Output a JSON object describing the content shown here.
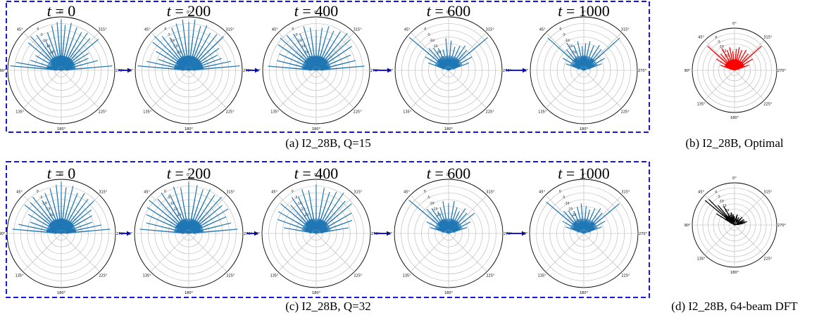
{
  "chart_data": {
    "type": "polar_beam_patterns",
    "angle_labels": [
      "0°",
      "45°",
      "90°",
      "135°",
      "180°",
      "225°",
      "270°",
      "315°"
    ],
    "radial_tick_labels": [
      "0",
      "-5",
      "-10",
      "-15",
      "-20",
      "-25"
    ],
    "colors": {
      "evolution": "#1f77b4",
      "optimal": "#ff0000",
      "dft": "#000000",
      "frame": "#1515e6",
      "arrow": "#1515e6"
    },
    "rows": [
      {
        "caption": "(a) I2_28B, Q=15",
        "panels": [
          {
            "t": "0",
            "lobes": [
              [
                85,
                0.95
              ],
              [
                80,
                0.85
              ],
              [
                72,
                0.6
              ],
              [
                60,
                0.55
              ],
              [
                50,
                0.8
              ],
              [
                42,
                0.85
              ],
              [
                35,
                0.8
              ],
              [
                28,
                0.6
              ],
              [
                20,
                0.75
              ],
              [
                12,
                0.85
              ],
              [
                5,
                0.9
              ],
              [
                0,
                0.95
              ],
              [
                -5,
                0.85
              ],
              [
                -12,
                0.9
              ],
              [
                -20,
                0.85
              ],
              [
                -28,
                0.8
              ],
              [
                -35,
                0.85
              ],
              [
                -42,
                0.8
              ],
              [
                -50,
                0.9
              ],
              [
                -58,
                0.6
              ],
              [
                -66,
                0.55
              ],
              [
                -75,
                0.7
              ],
              [
                -85,
                0.95
              ]
            ]
          },
          {
            "t": "200",
            "lobes": [
              [
                85,
                0.95
              ],
              [
                78,
                0.8
              ],
              [
                70,
                0.6
              ],
              [
                60,
                0.7
              ],
              [
                52,
                0.85
              ],
              [
                45,
                0.9
              ],
              [
                38,
                0.8
              ],
              [
                30,
                0.7
              ],
              [
                22,
                0.85
              ],
              [
                15,
                0.9
              ],
              [
                7,
                0.95
              ],
              [
                0,
                0.9
              ],
              [
                -7,
                0.95
              ],
              [
                -15,
                0.85
              ],
              [
                -22,
                0.9
              ],
              [
                -30,
                0.8
              ],
              [
                -38,
                0.85
              ],
              [
                -46,
                0.9
              ],
              [
                -54,
                0.7
              ],
              [
                -62,
                0.6
              ],
              [
                -70,
                0.65
              ],
              [
                -78,
                0.8
              ],
              [
                -85,
                0.95
              ]
            ]
          },
          {
            "t": "400",
            "lobes": [
              [
                85,
                0.9
              ],
              [
                76,
                0.75
              ],
              [
                66,
                0.75
              ],
              [
                56,
                0.85
              ],
              [
                48,
                0.9
              ],
              [
                40,
                0.85
              ],
              [
                32,
                0.8
              ],
              [
                24,
                0.75
              ],
              [
                16,
                0.85
              ],
              [
                8,
                0.8
              ],
              [
                0,
                0.75
              ],
              [
                -8,
                0.8
              ],
              [
                -16,
                0.85
              ],
              [
                -24,
                0.8
              ],
              [
                -32,
                0.85
              ],
              [
                -40,
                0.9
              ],
              [
                -48,
                0.85
              ],
              [
                -56,
                0.8
              ],
              [
                -66,
                0.7
              ],
              [
                -76,
                0.75
              ],
              [
                -85,
                0.9
              ]
            ]
          },
          {
            "t": "600",
            "lobes": [
              [
                70,
                0.4
              ],
              [
                60,
                0.5
              ],
              [
                50,
                0.95
              ],
              [
                42,
                0.55
              ],
              [
                34,
                0.5
              ],
              [
                25,
                0.45
              ],
              [
                15,
                0.4
              ],
              [
                5,
                0.6
              ],
              [
                -5,
                0.55
              ],
              [
                -15,
                0.45
              ],
              [
                -25,
                0.5
              ],
              [
                -34,
                0.55
              ],
              [
                -42,
                0.5
              ],
              [
                -50,
                0.95
              ],
              [
                -60,
                0.5
              ],
              [
                -70,
                0.4
              ]
            ]
          },
          {
            "t": "1000",
            "lobes": [
              [
                70,
                0.35
              ],
              [
                60,
                0.45
              ],
              [
                48,
                0.9
              ],
              [
                40,
                0.5
              ],
              [
                32,
                0.6
              ],
              [
                22,
                0.5
              ],
              [
                12,
                0.55
              ],
              [
                4,
                0.45
              ],
              [
                -4,
                0.5
              ],
              [
                -12,
                0.55
              ],
              [
                -22,
                0.5
              ],
              [
                -32,
                0.55
              ],
              [
                -40,
                0.5
              ],
              [
                -48,
                0.9
              ],
              [
                -60,
                0.45
              ],
              [
                -70,
                0.35
              ]
            ]
          }
        ],
        "reference": {
          "caption": "(b) I2_28B, Optimal",
          "lobes": [
            [
              70,
              0.35
            ],
            [
              58,
              0.5
            ],
            [
              48,
              0.85
            ],
            [
              40,
              0.5
            ],
            [
              30,
              0.6
            ],
            [
              20,
              0.5
            ],
            [
              12,
              0.55
            ],
            [
              5,
              0.45
            ],
            [
              -5,
              0.5
            ],
            [
              -12,
              0.55
            ],
            [
              -20,
              0.5
            ],
            [
              -30,
              0.55
            ],
            [
              -40,
              0.5
            ],
            [
              -48,
              0.85
            ],
            [
              -58,
              0.5
            ],
            [
              -70,
              0.35
            ]
          ]
        }
      },
      {
        "caption": "(c) I2_28B, Q=32",
        "panels": [
          {
            "t": "0",
            "lobes": [
              [
                85,
                0.9
              ],
              [
                78,
                0.8
              ],
              [
                70,
                0.6
              ],
              [
                60,
                0.7
              ],
              [
                52,
                0.85
              ],
              [
                45,
                0.8
              ],
              [
                38,
                0.85
              ],
              [
                30,
                0.7
              ],
              [
                22,
                0.8
              ],
              [
                14,
                0.85
              ],
              [
                6,
                0.9
              ],
              [
                0,
                0.95
              ],
              [
                -6,
                0.85
              ],
              [
                -14,
                0.9
              ],
              [
                -22,
                0.8
              ],
              [
                -30,
                0.85
              ],
              [
                -38,
                0.8
              ],
              [
                -45,
                0.85
              ],
              [
                -52,
                0.7
              ],
              [
                -60,
                0.65
              ],
              [
                -70,
                0.6
              ],
              [
                -78,
                0.75
              ],
              [
                -85,
                0.9
              ]
            ]
          },
          {
            "t": "200",
            "lobes": [
              [
                85,
                0.9
              ],
              [
                76,
                0.8
              ],
              [
                66,
                0.85
              ],
              [
                58,
                0.9
              ],
              [
                50,
                0.95
              ],
              [
                42,
                0.85
              ],
              [
                34,
                0.9
              ],
              [
                26,
                0.8
              ],
              [
                18,
                0.9
              ],
              [
                10,
                0.85
              ],
              [
                0,
                0.95
              ],
              [
                -10,
                0.9
              ],
              [
                -18,
                0.85
              ],
              [
                -26,
                0.9
              ],
              [
                -34,
                0.85
              ],
              [
                -42,
                0.9
              ],
              [
                -50,
                0.8
              ],
              [
                -58,
                0.85
              ],
              [
                -66,
                0.75
              ],
              [
                -76,
                0.8
              ],
              [
                -85,
                0.9
              ]
            ]
          },
          {
            "t": "400",
            "lobes": [
              [
                80,
                0.6
              ],
              [
                70,
                0.75
              ],
              [
                60,
                0.8
              ],
              [
                50,
                0.85
              ],
              [
                42,
                0.7
              ],
              [
                34,
                0.8
              ],
              [
                26,
                0.75
              ],
              [
                18,
                0.85
              ],
              [
                10,
                0.8
              ],
              [
                0,
                0.9
              ],
              [
                -10,
                0.85
              ],
              [
                -18,
                0.8
              ],
              [
                -26,
                0.85
              ],
              [
                -34,
                0.9
              ],
              [
                -42,
                0.8
              ],
              [
                -50,
                0.85
              ],
              [
                -60,
                0.75
              ],
              [
                -70,
                0.7
              ],
              [
                -80,
                0.6
              ]
            ]
          },
          {
            "t": "600",
            "lobes": [
              [
                72,
                0.35
              ],
              [
                62,
                0.45
              ],
              [
                50,
                0.95
              ],
              [
                42,
                0.6
              ],
              [
                34,
                0.55
              ],
              [
                26,
                0.45
              ],
              [
                18,
                0.5
              ],
              [
                10,
                0.6
              ],
              [
                0,
                0.55
              ],
              [
                -10,
                0.6
              ],
              [
                -18,
                0.5
              ],
              [
                -26,
                0.45
              ],
              [
                -34,
                0.55
              ],
              [
                -42,
                0.5
              ],
              [
                -52,
                0.6
              ],
              [
                -62,
                0.45
              ],
              [
                -72,
                0.35
              ]
            ]
          },
          {
            "t": "1000",
            "lobes": [
              [
                70,
                0.35
              ],
              [
                60,
                0.45
              ],
              [
                50,
                0.9
              ],
              [
                42,
                0.55
              ],
              [
                34,
                0.5
              ],
              [
                24,
                0.45
              ],
              [
                14,
                0.5
              ],
              [
                5,
                0.55
              ],
              [
                -5,
                0.5
              ],
              [
                -14,
                0.45
              ],
              [
                -24,
                0.5
              ],
              [
                -34,
                0.55
              ],
              [
                -42,
                0.5
              ],
              [
                -50,
                0.85
              ],
              [
                -60,
                0.45
              ],
              [
                -70,
                0.35
              ]
            ]
          }
        ],
        "reference": {
          "caption": "(d) I2_28B, 64-beam DFT",
          "lobes": [
            [
              58,
              0.5
            ],
            [
              50,
              0.9
            ],
            [
              45,
              0.85
            ],
            [
              40,
              0.6
            ],
            [
              30,
              0.5
            ],
            [
              15,
              0.3
            ],
            [
              0,
              0.2
            ],
            [
              -30,
              0.2
            ],
            [
              -60,
              0.25
            ],
            [
              -75,
              0.3
            ],
            [
              -80,
              0.2
            ]
          ]
        }
      }
    ]
  }
}
